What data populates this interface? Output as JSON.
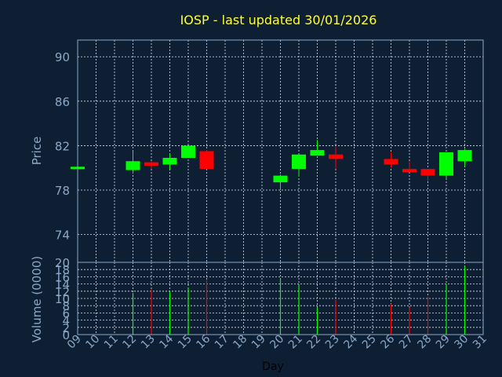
{
  "colors": {
    "background": "#0f1f33",
    "title": "#ffff33",
    "axis_text": "#8aa8c8",
    "grid": "#d8e2ee",
    "frame": "#8aa8c8",
    "up": "#00ff00",
    "down": "#ff0000",
    "xlabel": "#000000"
  },
  "chart_data": [
    {
      "type": "candlestick",
      "title": "IOSP - last updated 30/01/2026",
      "ylabel": "Price",
      "ylim": [
        71.5,
        91.5
      ],
      "yticks": [
        74,
        78,
        82,
        86,
        90
      ],
      "xlim": [
        9,
        31
      ],
      "grid": true,
      "candles": [
        {
          "day": 9,
          "open": 80.0,
          "high": 80.1,
          "low": 79.9,
          "close": 80.1
        },
        {
          "day": 12,
          "open": 79.8,
          "high": 81.5,
          "low": 79.5,
          "close": 80.6
        },
        {
          "day": 13,
          "open": 80.5,
          "high": 80.6,
          "low": 79.9,
          "close": 80.2
        },
        {
          "day": 14,
          "open": 80.3,
          "high": 81.3,
          "low": 79.9,
          "close": 80.9
        },
        {
          "day": 15,
          "open": 80.9,
          "high": 82.0,
          "low": 80.9,
          "close": 82.0
        },
        {
          "day": 16,
          "open": 81.5,
          "high": 81.6,
          "low": 79.9,
          "close": 79.9
        },
        {
          "day": 20,
          "open": 78.7,
          "high": 79.4,
          "low": 78.0,
          "close": 79.3
        },
        {
          "day": 21,
          "open": 79.9,
          "high": 81.2,
          "low": 79.2,
          "close": 81.2
        },
        {
          "day": 22,
          "open": 81.1,
          "high": 82.5,
          "low": 81.1,
          "close": 81.6
        },
        {
          "day": 23,
          "open": 81.2,
          "high": 81.9,
          "low": 79.9,
          "close": 80.8
        },
        {
          "day": 26,
          "open": 80.8,
          "high": 81.4,
          "low": 80.0,
          "close": 80.3
        },
        {
          "day": 27,
          "open": 79.9,
          "high": 80.6,
          "low": 79.6,
          "close": 79.6
        },
        {
          "day": 28,
          "open": 79.9,
          "high": 79.9,
          "low": 78.8,
          "close": 79.3
        },
        {
          "day": 29,
          "open": 79.3,
          "high": 81.4,
          "low": 79.0,
          "close": 81.4
        },
        {
          "day": 30,
          "open": 80.6,
          "high": 81.7,
          "low": 80.2,
          "close": 81.6
        }
      ]
    },
    {
      "type": "bar",
      "ylabel": "Volume (0000)",
      "xlabel": "Day",
      "ylim": [
        0,
        20
      ],
      "yticks": [
        0,
        2,
        4,
        6,
        8,
        10,
        12,
        14,
        16,
        18,
        20
      ],
      "xlim": [
        9,
        31
      ],
      "xticks": [
        "09",
        "10",
        "11",
        "12",
        "13",
        "14",
        "15",
        "16",
        "17",
        "18",
        "19",
        "20",
        "21",
        "22",
        "23",
        "24",
        "25",
        "26",
        "27",
        "28",
        "29",
        "30",
        "31"
      ],
      "grid": true,
      "bars": [
        {
          "day": 12,
          "value": 11.5,
          "direction": "up"
        },
        {
          "day": 13,
          "value": 12.5,
          "direction": "down"
        },
        {
          "day": 14,
          "value": 12.0,
          "direction": "up"
        },
        {
          "day": 15,
          "value": 13.0,
          "direction": "up"
        },
        {
          "day": 16,
          "value": 15.0,
          "direction": "down"
        },
        {
          "day": 20,
          "value": 15.5,
          "direction": "up"
        },
        {
          "day": 21,
          "value": 13.5,
          "direction": "up"
        },
        {
          "day": 22,
          "value": 7.5,
          "direction": "up"
        },
        {
          "day": 23,
          "value": 9.5,
          "direction": "down"
        },
        {
          "day": 26,
          "value": 8.5,
          "direction": "down"
        },
        {
          "day": 27,
          "value": 7.5,
          "direction": "down"
        },
        {
          "day": 28,
          "value": 10.5,
          "direction": "down"
        },
        {
          "day": 29,
          "value": 14.0,
          "direction": "up"
        },
        {
          "day": 30,
          "value": 19.0,
          "direction": "up"
        }
      ]
    }
  ]
}
